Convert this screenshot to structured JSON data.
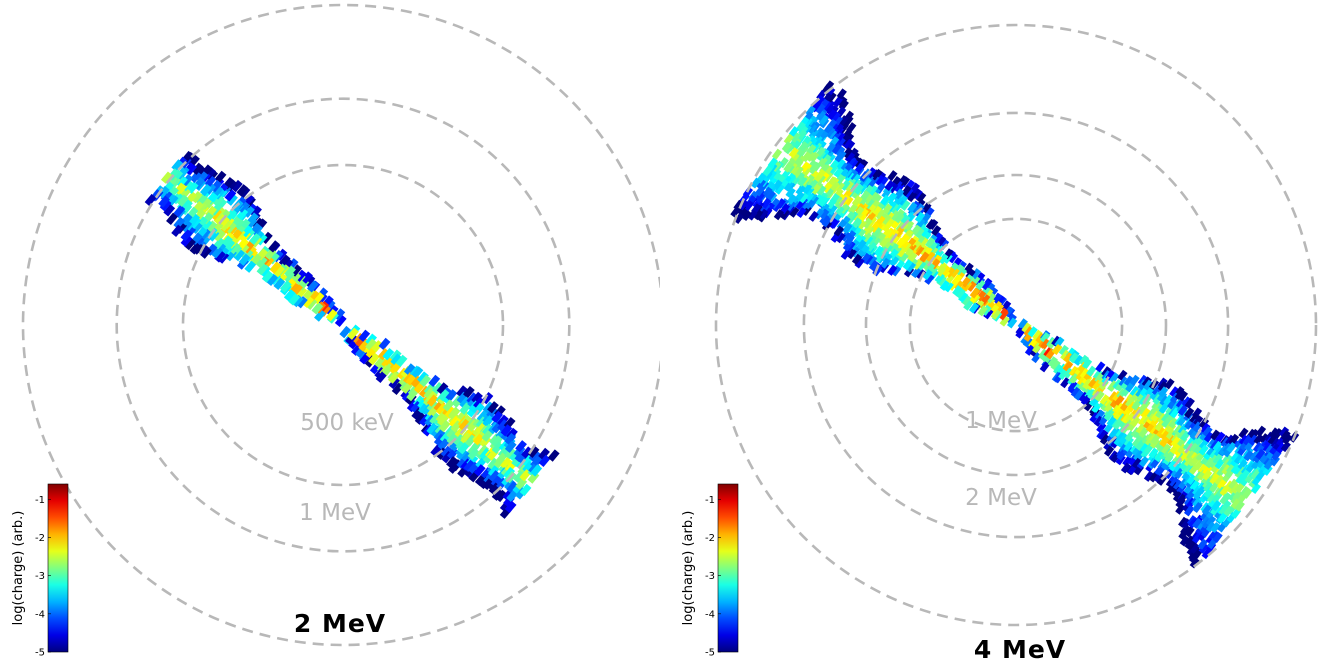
{
  "chart_data": [
    {
      "type": "heatmap",
      "title": "2 MeV",
      "energy_unit": "MeV",
      "rings": [
        {
          "energy": 0.5,
          "label": "500 keV"
        },
        {
          "energy": 1.0,
          "label": "1 MeV"
        },
        {
          "energy": 2.0,
          "label": ""
        }
      ],
      "max_energy": 2.0,
      "lobe_angle_deg": 140,
      "lobe_spread_deg": 11,
      "colorbar": {
        "label": "log(charge) (arb.)",
        "ticks": [
          -1,
          -2,
          -3,
          -4,
          -5
        ],
        "range": [
          -5,
          -0.6
        ],
        "colormap": "jet"
      }
    },
    {
      "type": "heatmap",
      "title": "4 MeV",
      "energy_unit": "MeV",
      "rings": [
        {
          "energy": 0.5,
          "label": ""
        },
        {
          "energy": 1.0,
          "label": "1 MeV"
        },
        {
          "energy": 2.0,
          "label": "2 MeV"
        },
        {
          "energy": 4.0,
          "label": ""
        }
      ],
      "max_energy": 4.0,
      "lobe_angle_deg": 143,
      "lobe_spread_deg": 14,
      "colorbar": {
        "label": "log(charge) (arb.)",
        "ticks": [
          -1,
          -2,
          -3,
          -4,
          -5
        ],
        "range": [
          -5,
          -0.6
        ],
        "colormap": "jet"
      }
    }
  ],
  "colors": {
    "ring": "#b8b8b8",
    "ring_label": "#b8b8b8",
    "energy_label": "#000000"
  }
}
